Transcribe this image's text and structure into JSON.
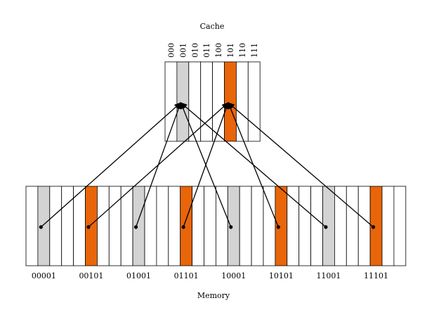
{
  "cache": {
    "title": "Cache",
    "slots": [
      "000",
      "001",
      "010",
      "011",
      "100",
      "101",
      "110",
      "111"
    ],
    "highlighted": {
      "001": "gray",
      "101": "orange"
    }
  },
  "memory": {
    "title": "Memory",
    "addresses": [
      "00001",
      "00101",
      "01001",
      "01101",
      "10001",
      "10101",
      "11001",
      "11101"
    ],
    "block_count": 32,
    "highlighted": {
      "00001": "gray",
      "00101": "orange",
      "01001": "gray",
      "01101": "orange",
      "10001": "gray",
      "10101": "orange",
      "11001": "gray",
      "11101": "orange"
    }
  },
  "mappings": [
    {
      "from": "00001",
      "to": "001"
    },
    {
      "from": "00101",
      "to": "101"
    },
    {
      "from": "01001",
      "to": "001"
    },
    {
      "from": "01101",
      "to": "101"
    },
    {
      "from": "10001",
      "to": "001"
    },
    {
      "from": "10101",
      "to": "101"
    },
    {
      "from": "11001",
      "to": "001"
    },
    {
      "from": "11101",
      "to": "101"
    }
  ],
  "colors": {
    "gray": "#d3d3d3",
    "orange": "#e8650a",
    "stroke": "#000000",
    "bg": "#ffffff"
  }
}
